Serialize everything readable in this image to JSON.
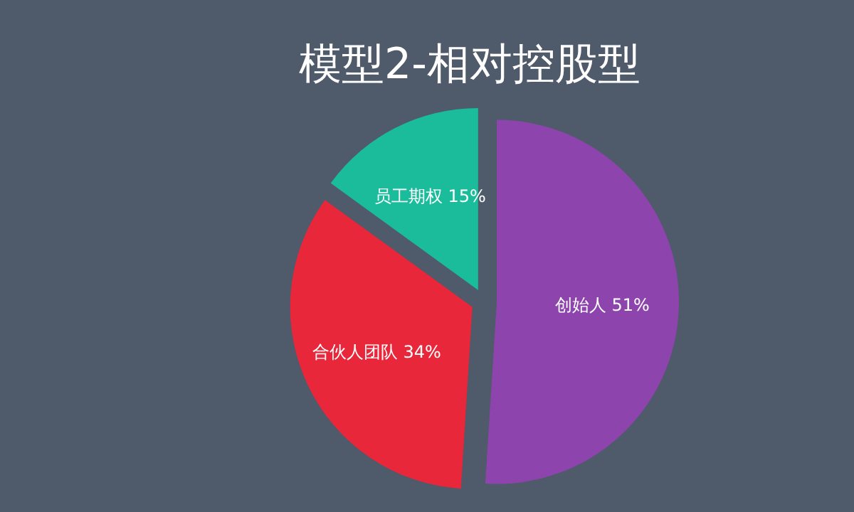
{
  "chart_data": {
    "type": "pie",
    "title": "模型2-相对控股型",
    "categories": [
      "创始人",
      "合伙人团队",
      "员工期权"
    ],
    "values": [
      51,
      34,
      15
    ],
    "colors": [
      "#8e44ad",
      "#e8273a",
      "#1abc9c"
    ],
    "value_labels": [
      "51%",
      "34%",
      "15%"
    ]
  }
}
